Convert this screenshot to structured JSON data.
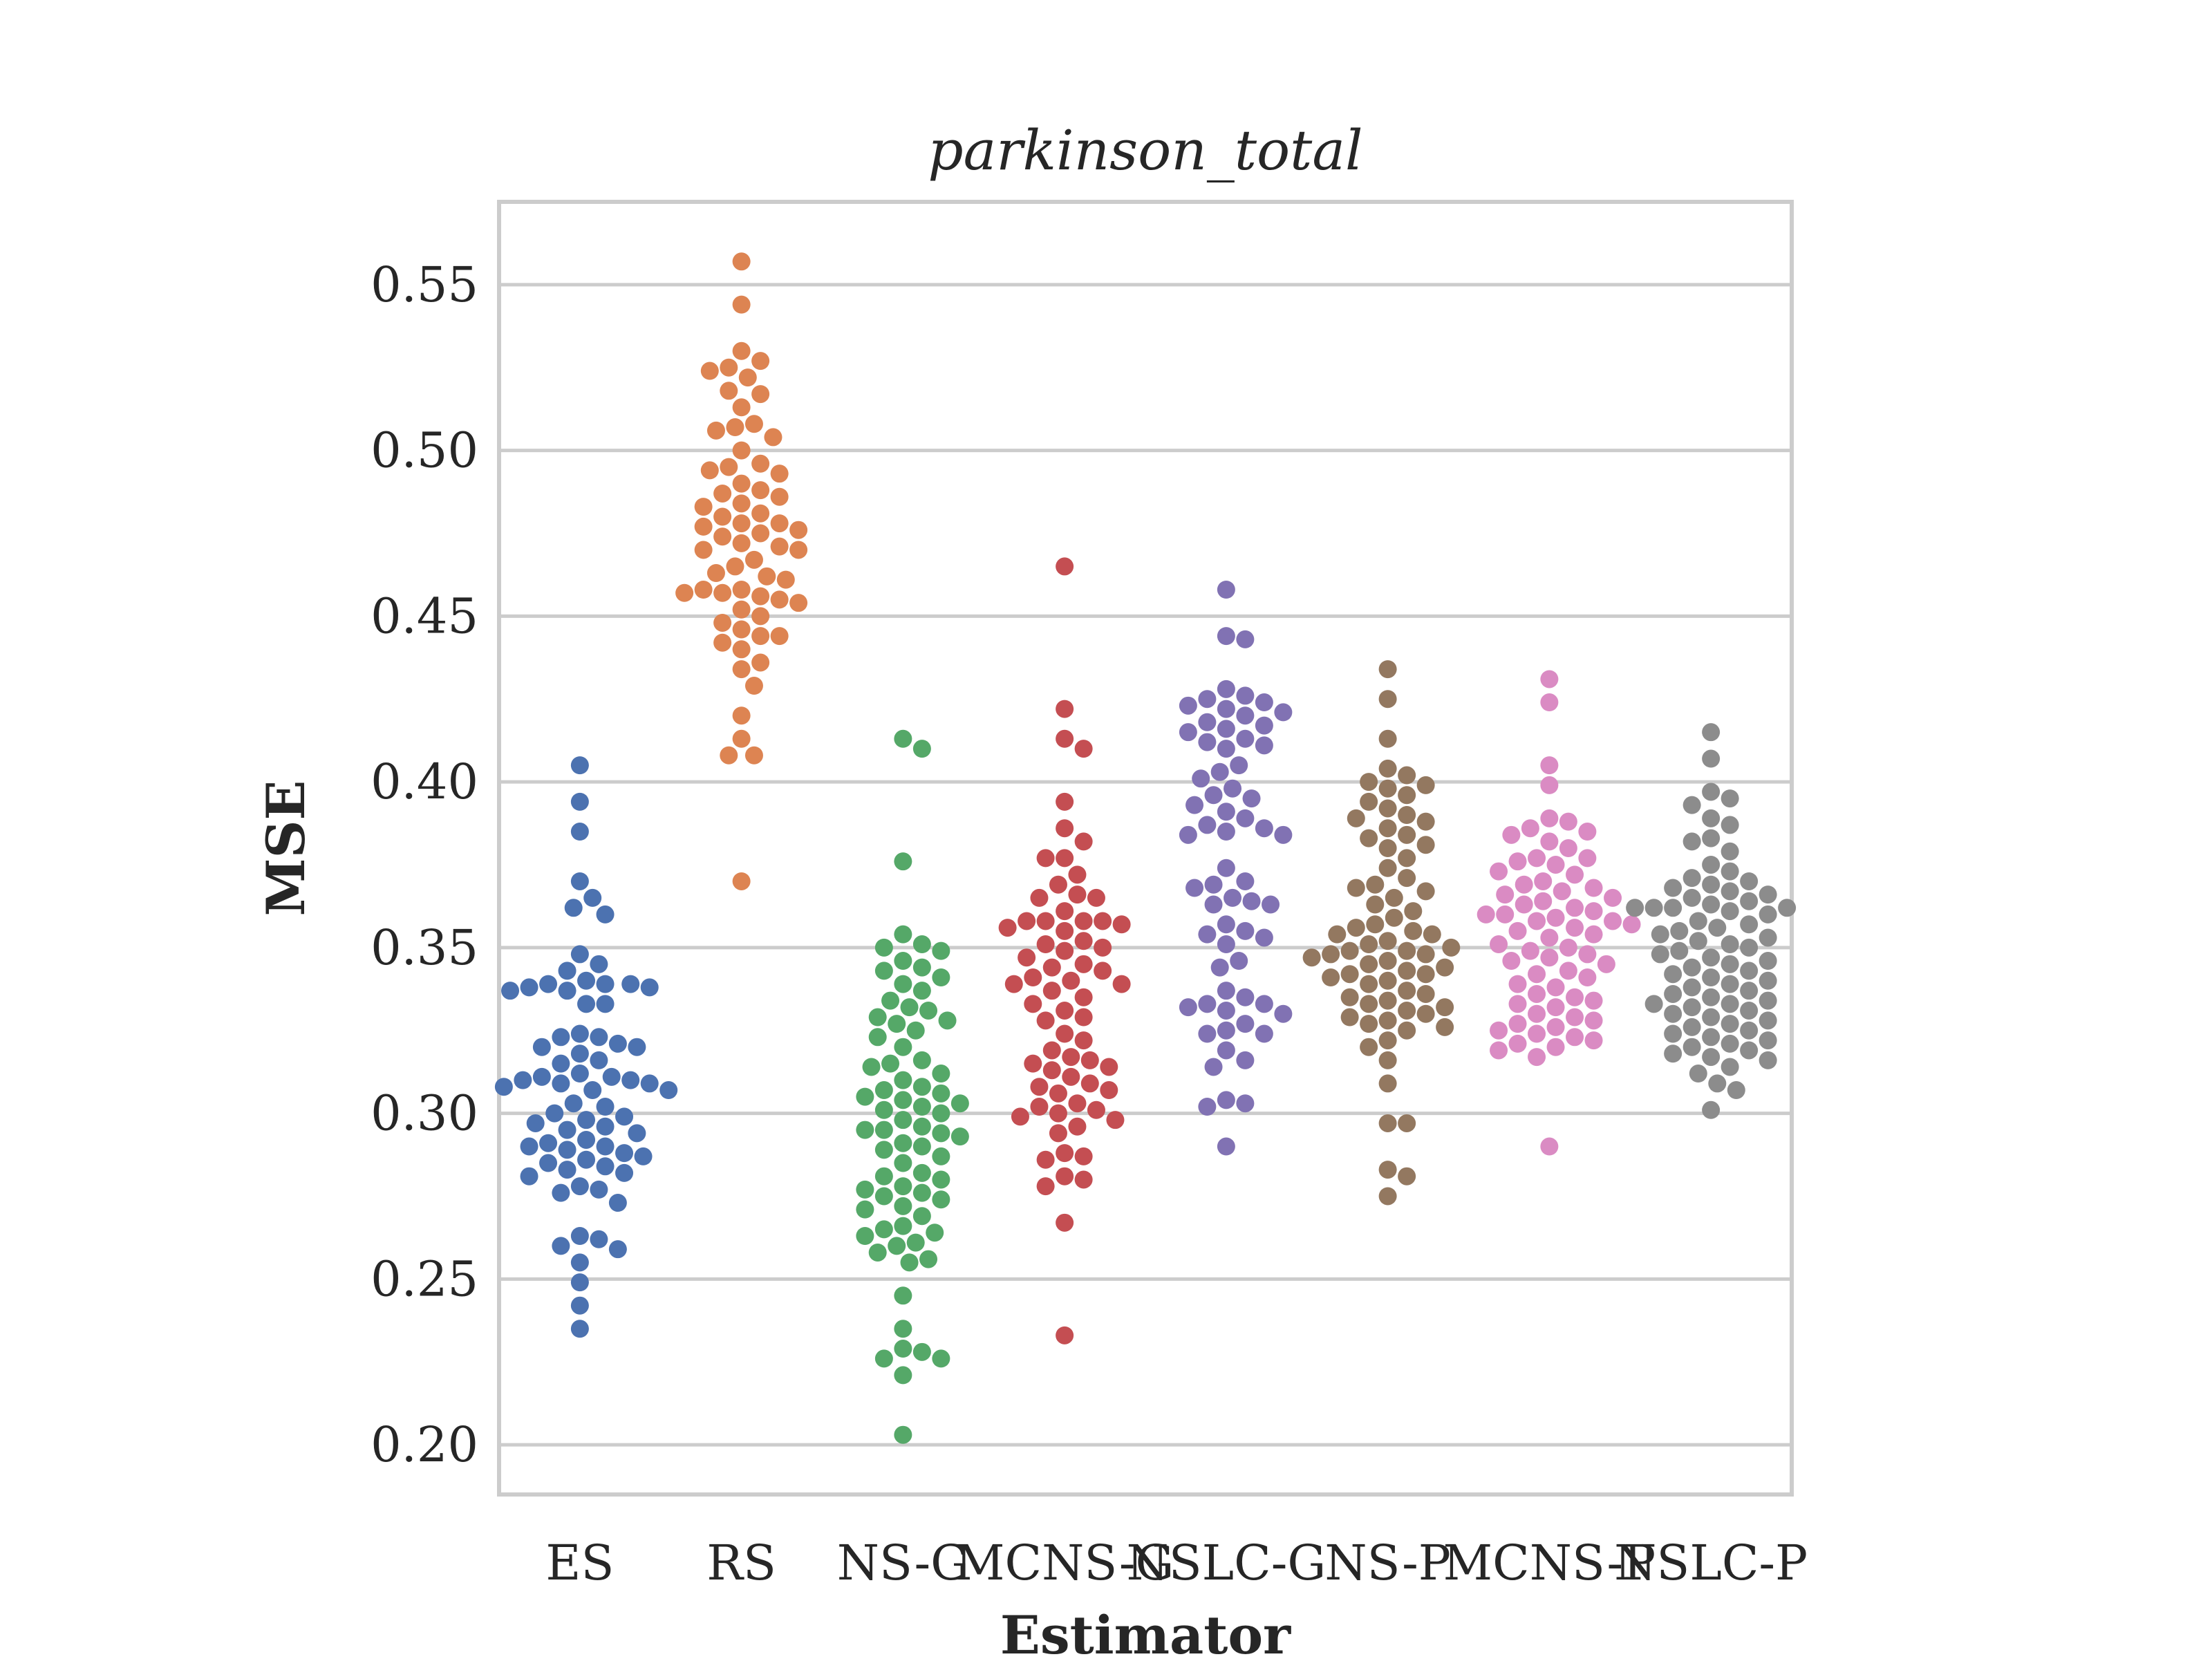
{
  "chart_data": {
    "type": "scatter",
    "title": "parkinson_total",
    "xlabel": "Estimator",
    "ylabel": "MSE",
    "ylim": [
      0.185,
      0.575
    ],
    "yticks": [
      "0.20",
      "0.25",
      "0.30",
      "0.35",
      "0.40",
      "0.45",
      "0.50",
      "0.55"
    ],
    "grid": true,
    "categories": [
      "ES",
      "RS",
      "NS-G",
      "MCNS-G",
      "NSLC-G",
      "NS-P",
      "MCNS-P",
      "NSLC-P"
    ],
    "series": [
      {
        "color": "#4c72b0",
        "values": [
          0.405,
          0.394,
          0.385,
          0.37,
          0.365,
          0.362,
          0.36,
          0.348,
          0.345,
          0.343,
          0.339,
          0.339,
          0.338,
          0.338,
          0.337,
          0.337,
          0.339,
          0.34,
          0.333,
          0.333,
          0.324,
          0.323,
          0.323,
          0.321,
          0.32,
          0.32,
          0.318,
          0.316,
          0.315,
          0.312,
          0.311,
          0.311,
          0.31,
          0.31,
          0.309,
          0.309,
          0.308,
          0.307,
          0.307,
          0.303,
          0.302,
          0.3,
          0.299,
          0.298,
          0.297,
          0.296,
          0.295,
          0.294,
          0.292,
          0.291,
          0.29,
          0.29,
          0.289,
          0.288,
          0.287,
          0.286,
          0.285,
          0.284,
          0.283,
          0.282,
          0.281,
          0.278,
          0.277,
          0.276,
          0.273,
          0.263,
          0.262,
          0.26,
          0.259,
          0.255,
          0.249,
          0.242,
          0.235
        ]
      },
      {
        "color": "#dd8452",
        "values": [
          0.557,
          0.544,
          0.53,
          0.527,
          0.525,
          0.524,
          0.522,
          0.518,
          0.517,
          0.513,
          0.508,
          0.507,
          0.506,
          0.504,
          0.5,
          0.496,
          0.495,
          0.494,
          0.493,
          0.49,
          0.488,
          0.487,
          0.486,
          0.484,
          0.483,
          0.481,
          0.48,
          0.478,
          0.478,
          0.477,
          0.476,
          0.475,
          0.474,
          0.472,
          0.471,
          0.47,
          0.47,
          0.467,
          0.465,
          0.463,
          0.462,
          0.461,
          0.458,
          0.458,
          0.457,
          0.457,
          0.456,
          0.455,
          0.454,
          0.452,
          0.45,
          0.448,
          0.446,
          0.444,
          0.444,
          0.442,
          0.44,
          0.436,
          0.434,
          0.429,
          0.42,
          0.413,
          0.408,
          0.408,
          0.37
        ]
      },
      {
        "color": "#55a868",
        "values": [
          0.413,
          0.41,
          0.376,
          0.354,
          0.351,
          0.35,
          0.349,
          0.346,
          0.344,
          0.343,
          0.341,
          0.339,
          0.337,
          0.334,
          0.332,
          0.331,
          0.329,
          0.328,
          0.327,
          0.325,
          0.323,
          0.32,
          0.316,
          0.315,
          0.314,
          0.312,
          0.31,
          0.308,
          0.307,
          0.306,
          0.305,
          0.304,
          0.303,
          0.302,
          0.301,
          0.3,
          0.298,
          0.296,
          0.295,
          0.295,
          0.294,
          0.293,
          0.291,
          0.29,
          0.289,
          0.287,
          0.285,
          0.282,
          0.281,
          0.28,
          0.278,
          0.277,
          0.276,
          0.275,
          0.274,
          0.272,
          0.271,
          0.269,
          0.266,
          0.265,
          0.264,
          0.263,
          0.261,
          0.26,
          0.258,
          0.256,
          0.255,
          0.245,
          0.235,
          0.229,
          0.228,
          0.226,
          0.226,
          0.221,
          0.203
        ]
      },
      {
        "color": "#c44e52",
        "values": [
          0.465,
          0.422,
          0.413,
          0.41,
          0.394,
          0.386,
          0.382,
          0.377,
          0.377,
          0.372,
          0.369,
          0.366,
          0.365,
          0.365,
          0.361,
          0.358,
          0.358,
          0.358,
          0.358,
          0.357,
          0.356,
          0.355,
          0.352,
          0.351,
          0.35,
          0.349,
          0.347,
          0.345,
          0.344,
          0.343,
          0.341,
          0.34,
          0.339,
          0.339,
          0.337,
          0.335,
          0.333,
          0.331,
          0.329,
          0.328,
          0.324,
          0.322,
          0.319,
          0.317,
          0.316,
          0.315,
          0.314,
          0.313,
          0.311,
          0.309,
          0.308,
          0.307,
          0.306,
          0.303,
          0.302,
          0.301,
          0.3,
          0.299,
          0.298,
          0.296,
          0.294,
          0.288,
          0.287,
          0.286,
          0.281,
          0.28,
          0.278,
          0.267,
          0.233
        ]
      },
      {
        "color": "#8172b3",
        "values": [
          0.458,
          0.444,
          0.443,
          0.428,
          0.426,
          0.425,
          0.424,
          0.423,
          0.422,
          0.421,
          0.42,
          0.418,
          0.417,
          0.416,
          0.415,
          0.413,
          0.412,
          0.411,
          0.41,
          0.405,
          0.403,
          0.401,
          0.398,
          0.396,
          0.395,
          0.393,
          0.391,
          0.389,
          0.387,
          0.386,
          0.385,
          0.384,
          0.384,
          0.374,
          0.37,
          0.369,
          0.368,
          0.365,
          0.364,
          0.363,
          0.363,
          0.357,
          0.355,
          0.354,
          0.353,
          0.351,
          0.346,
          0.344,
          0.337,
          0.335,
          0.333,
          0.333,
          0.332,
          0.331,
          0.33,
          0.327,
          0.325,
          0.324,
          0.324,
          0.319,
          0.316,
          0.314,
          0.304,
          0.303,
          0.302,
          0.29
        ]
      },
      {
        "color": "#937860",
        "values": [
          0.434,
          0.425,
          0.413,
          0.404,
          0.402,
          0.4,
          0.399,
          0.398,
          0.396,
          0.394,
          0.392,
          0.39,
          0.389,
          0.388,
          0.386,
          0.384,
          0.383,
          0.381,
          0.38,
          0.377,
          0.374,
          0.371,
          0.369,
          0.368,
          0.367,
          0.365,
          0.363,
          0.361,
          0.359,
          0.357,
          0.356,
          0.355,
          0.354,
          0.354,
          0.352,
          0.351,
          0.35,
          0.349,
          0.349,
          0.348,
          0.348,
          0.347,
          0.346,
          0.345,
          0.344,
          0.343,
          0.342,
          0.342,
          0.341,
          0.34,
          0.339,
          0.337,
          0.336,
          0.335,
          0.334,
          0.333,
          0.332,
          0.331,
          0.33,
          0.329,
          0.328,
          0.327,
          0.326,
          0.325,
          0.322,
          0.32,
          0.316,
          0.309,
          0.297,
          0.297,
          0.283,
          0.281,
          0.275
        ]
      },
      {
        "color": "#da8bc3",
        "values": [
          0.431,
          0.424,
          0.405,
          0.399,
          0.389,
          0.388,
          0.386,
          0.385,
          0.384,
          0.382,
          0.38,
          0.377,
          0.377,
          0.376,
          0.375,
          0.373,
          0.372,
          0.37,
          0.369,
          0.368,
          0.367,
          0.366,
          0.365,
          0.364,
          0.363,
          0.362,
          0.361,
          0.36,
          0.36,
          0.359,
          0.358,
          0.358,
          0.357,
          0.356,
          0.355,
          0.354,
          0.353,
          0.351,
          0.35,
          0.349,
          0.348,
          0.347,
          0.346,
          0.345,
          0.343,
          0.342,
          0.341,
          0.339,
          0.338,
          0.336,
          0.335,
          0.334,
          0.333,
          0.332,
          0.33,
          0.329,
          0.328,
          0.327,
          0.326,
          0.325,
          0.324,
          0.323,
          0.322,
          0.321,
          0.32,
          0.319,
          0.317,
          0.29
        ]
      },
      {
        "color": "#8c8c8c",
        "values": [
          0.415,
          0.407,
          0.397,
          0.395,
          0.393,
          0.389,
          0.387,
          0.383,
          0.382,
          0.379,
          0.375,
          0.373,
          0.371,
          0.37,
          0.369,
          0.368,
          0.367,
          0.366,
          0.365,
          0.364,
          0.363,
          0.362,
          0.362,
          0.362,
          0.362,
          0.361,
          0.36,
          0.358,
          0.357,
          0.356,
          0.355,
          0.354,
          0.353,
          0.352,
          0.351,
          0.35,
          0.349,
          0.348,
          0.347,
          0.346,
          0.345,
          0.344,
          0.343,
          0.342,
          0.341,
          0.34,
          0.339,
          0.338,
          0.337,
          0.336,
          0.335,
          0.334,
          0.333,
          0.333,
          0.332,
          0.331,
          0.33,
          0.329,
          0.328,
          0.327,
          0.326,
          0.325,
          0.324,
          0.323,
          0.322,
          0.321,
          0.32,
          0.319,
          0.318,
          0.317,
          0.316,
          0.314,
          0.312,
          0.309,
          0.307,
          0.301
        ]
      }
    ]
  }
}
